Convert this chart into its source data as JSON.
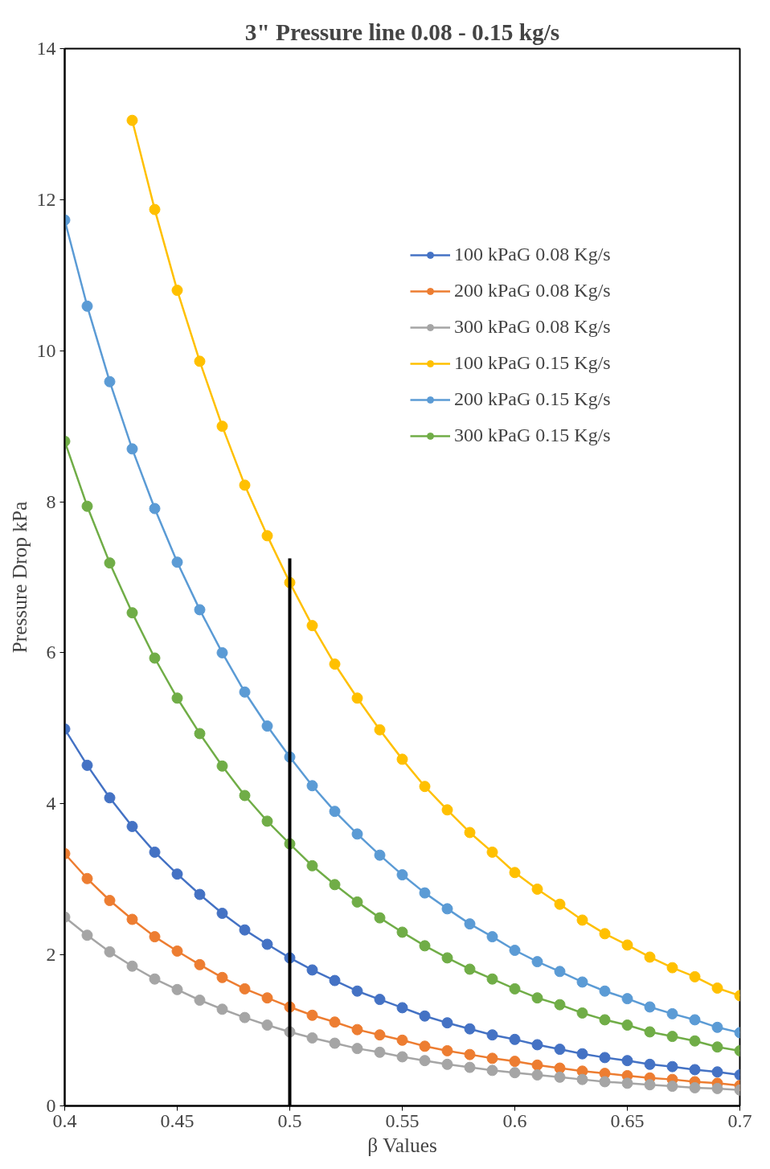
{
  "chart_data": {
    "type": "line",
    "title": "3\" Pressure line 0.08 - 0.15 kg/s",
    "xlabel": "β Values",
    "ylabel": "Pressure Drop kPa",
    "x": [
      0.4,
      0.41,
      0.42,
      0.43,
      0.44,
      0.45,
      0.46,
      0.47,
      0.48,
      0.49,
      0.5,
      0.51,
      0.52,
      0.53,
      0.54,
      0.55,
      0.56,
      0.57,
      0.58,
      0.59,
      0.6,
      0.61,
      0.62,
      0.63,
      0.64,
      0.65,
      0.66,
      0.67,
      0.68,
      0.69,
      0.7
    ],
    "xlim": [
      0.4,
      0.7
    ],
    "xticks": [
      0.4,
      0.45,
      0.5,
      0.55,
      0.6,
      0.65,
      0.7
    ],
    "ylim": [
      0,
      14
    ],
    "yticks": [
      0,
      2,
      4,
      6,
      8,
      10,
      12,
      14
    ],
    "grid": false,
    "legend": "top right",
    "marker": "circle",
    "line_style": "solid",
    "series": [
      {
        "name": "100 kPaG 0.08 Kg/s",
        "color": "#4472c4",
        "values": [
          4.99,
          4.51,
          4.08,
          3.7,
          3.36,
          3.07,
          2.8,
          2.55,
          2.33,
          2.14,
          1.96,
          1.8,
          1.66,
          1.52,
          1.41,
          1.3,
          1.19,
          1.1,
          1.02,
          0.94,
          0.88,
          0.81,
          0.75,
          0.69,
          0.64,
          0.6,
          0.55,
          0.52,
          0.48,
          0.45,
          0.41
        ]
      },
      {
        "name": "200 kPaG 0.08 Kg/s",
        "color": "#ed7d31",
        "values": [
          3.34,
          3.01,
          2.72,
          2.47,
          2.24,
          2.05,
          1.87,
          1.7,
          1.55,
          1.43,
          1.31,
          1.2,
          1.11,
          1.01,
          0.94,
          0.87,
          0.79,
          0.73,
          0.68,
          0.63,
          0.59,
          0.54,
          0.5,
          0.46,
          0.43,
          0.4,
          0.37,
          0.35,
          0.32,
          0.3,
          0.27
        ]
      },
      {
        "name": "300 kPaG 0.08 Kg/s",
        "color": "#a5a5a5",
        "values": [
          2.5,
          2.26,
          2.04,
          1.85,
          1.68,
          1.54,
          1.4,
          1.28,
          1.17,
          1.07,
          0.98,
          0.9,
          0.83,
          0.76,
          0.71,
          0.65,
          0.6,
          0.55,
          0.51,
          0.47,
          0.44,
          0.41,
          0.38,
          0.35,
          0.32,
          0.3,
          0.28,
          0.26,
          0.24,
          0.23,
          0.21
        ]
      },
      {
        "name": "100 kPaG 0.15 Kg/s",
        "color": "#ffc000",
        "values": [
          null,
          null,
          null,
          13.05,
          11.87,
          10.8,
          9.86,
          9.0,
          8.22,
          7.55,
          6.93,
          6.36,
          5.85,
          5.4,
          4.98,
          4.59,
          4.23,
          3.92,
          3.62,
          3.36,
          3.09,
          2.87,
          2.67,
          2.46,
          2.28,
          2.13,
          1.97,
          1.83,
          1.71,
          1.56,
          1.46
        ]
      },
      {
        "name": "200 kPaG 0.15 Kg/s",
        "color": "#5b9bd5",
        "values": [
          11.73,
          10.59,
          9.59,
          8.7,
          7.91,
          7.2,
          6.57,
          6.0,
          5.48,
          5.03,
          4.62,
          4.24,
          3.9,
          3.6,
          3.32,
          3.06,
          2.82,
          2.61,
          2.41,
          2.24,
          2.06,
          1.91,
          1.78,
          1.64,
          1.52,
          1.42,
          1.31,
          1.22,
          1.14,
          1.04,
          0.97
        ]
      },
      {
        "name": "300 kPaG 0.15 Kg/s",
        "color": "#70ad47",
        "values": [
          8.8,
          7.94,
          7.19,
          6.53,
          5.93,
          5.4,
          4.93,
          4.5,
          4.11,
          3.77,
          3.47,
          3.18,
          2.93,
          2.7,
          2.49,
          2.3,
          2.12,
          1.96,
          1.81,
          1.68,
          1.55,
          1.43,
          1.34,
          1.23,
          1.14,
          1.07,
          0.98,
          0.92,
          0.86,
          0.78,
          0.73
        ]
      },
      {
        "color": "#000000",
        "x": [
          0.5,
          0.5
        ],
        "values": [
          0,
          7.25
        ],
        "marker": "none"
      }
    ]
  }
}
